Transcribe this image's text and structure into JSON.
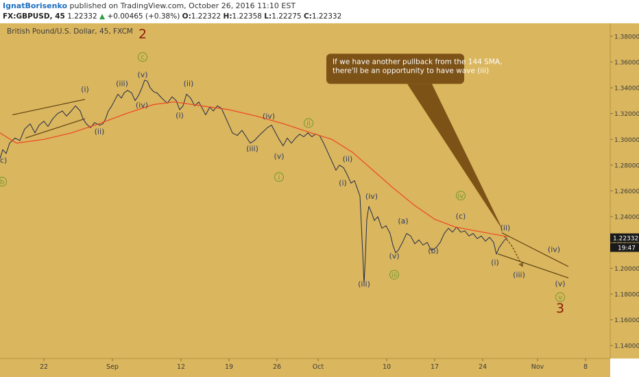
{
  "header": {
    "author": "IgnatBorisenko",
    "published_text": "published on TradingView.com, October 26, 2016 11:10 EST",
    "symbol": "FX:GBPUSD, 45",
    "last_price": "1.22332",
    "change_arrow": "▲",
    "change": "+0.00465 (+0.38%)",
    "open_label": "O:",
    "open": "1.22322",
    "high_label": "H:",
    "high": "1.22358",
    "low_label": "L:",
    "low": "1.22275",
    "close_label": "C:",
    "close": "1.22332"
  },
  "colors": {
    "background": "#dab65e",
    "price_line": "#1f2a4a",
    "sma": "#ee4422",
    "wave_dark": "#2b3a67",
    "wave_green": "#6f9a2c",
    "wave_red": "#8b1a0a",
    "callout": "#7d5216",
    "trend": "#5a3f12",
    "price_tag": "#1a1a1a"
  },
  "chart_data": {
    "type": "line",
    "title": "British Pound/U.S. Dollar, 45, FXCM",
    "xlabel": "",
    "ylabel": "",
    "ylim": [
      1.13,
      1.39
    ],
    "y_ticks": [
      "1.38000",
      "1.36000",
      "1.34000",
      "1.32000",
      "1.30000",
      "1.28000",
      "1.26000",
      "1.24000",
      "1.22000",
      "1.20000",
      "1.18000",
      "1.16000",
      "1.14000"
    ],
    "x_ticks": [
      {
        "label": "22",
        "x": 22
      },
      {
        "label": "Sep",
        "x": 32
      },
      {
        "label": "12",
        "x": 42
      },
      {
        "label": "19",
        "x": 49
      },
      {
        "label": "26",
        "x": 56
      },
      {
        "label": "Oct",
        "x": 62
      },
      {
        "label": "10",
        "x": 72
      },
      {
        "label": "17",
        "x": 79
      },
      {
        "label": "24",
        "x": 86
      },
      {
        "label": "Nov",
        "x": 94
      },
      {
        "label": "8",
        "x": 101
      }
    ],
    "xlim": [
      15.6,
      104.6
    ],
    "series": [
      {
        "kind": "price",
        "points": [
          [
            15.6,
            1.285
          ],
          [
            16.0,
            1.292
          ],
          [
            16.5,
            1.289
          ],
          [
            17.0,
            1.297
          ],
          [
            17.8,
            1.301
          ],
          [
            18.5,
            1.299
          ],
          [
            19.2,
            1.308
          ],
          [
            20.0,
            1.312
          ],
          [
            20.7,
            1.305
          ],
          [
            21.3,
            1.311
          ],
          [
            22.0,
            1.314
          ],
          [
            22.6,
            1.31
          ],
          [
            23.3,
            1.316
          ],
          [
            24.0,
            1.32
          ],
          [
            24.7,
            1.322
          ],
          [
            25.3,
            1.318
          ],
          [
            26.0,
            1.322
          ],
          [
            26.6,
            1.326
          ],
          [
            27.3,
            1.322
          ],
          [
            27.7,
            1.316
          ],
          [
            28.2,
            1.312
          ],
          [
            28.8,
            1.309
          ],
          [
            29.4,
            1.313
          ],
          [
            30.1,
            1.311
          ],
          [
            30.6,
            1.312
          ],
          [
            31.0,
            1.316
          ],
          [
            31.4,
            1.322
          ],
          [
            31.8,
            1.325
          ],
          [
            32.3,
            1.33
          ],
          [
            32.8,
            1.335
          ],
          [
            33.3,
            1.332
          ],
          [
            33.7,
            1.336
          ],
          [
            34.2,
            1.338
          ],
          [
            34.8,
            1.336
          ],
          [
            35.3,
            1.33
          ],
          [
            35.8,
            1.334
          ],
          [
            36.3,
            1.34
          ],
          [
            36.7,
            1.346
          ],
          [
            37.1,
            1.345
          ],
          [
            37.5,
            1.34
          ],
          [
            38.0,
            1.337
          ],
          [
            38.5,
            1.336
          ],
          [
            39.2,
            1.332
          ],
          [
            40.0,
            1.328
          ],
          [
            40.7,
            1.333
          ],
          [
            41.3,
            1.33
          ],
          [
            41.8,
            1.323
          ],
          [
            42.3,
            1.326
          ],
          [
            42.8,
            1.335
          ],
          [
            43.4,
            1.332
          ],
          [
            44.0,
            1.326
          ],
          [
            44.6,
            1.329
          ],
          [
            45.1,
            1.324
          ],
          [
            45.6,
            1.319
          ],
          [
            46.2,
            1.325
          ],
          [
            46.7,
            1.322
          ],
          [
            47.3,
            1.326
          ],
          [
            47.9,
            1.324
          ],
          [
            48.5,
            1.317
          ],
          [
            49.0,
            1.311
          ],
          [
            49.5,
            1.305
          ],
          [
            50.2,
            1.303
          ],
          [
            50.9,
            1.307
          ],
          [
            51.5,
            1.302
          ],
          [
            52.1,
            1.297
          ],
          [
            52.7,
            1.299
          ],
          [
            53.4,
            1.303
          ],
          [
            54.0,
            1.306
          ],
          [
            54.6,
            1.309
          ],
          [
            55.2,
            1.311
          ],
          [
            55.8,
            1.305
          ],
          [
            56.3,
            1.3
          ],
          [
            56.9,
            1.295
          ],
          [
            57.5,
            1.301
          ],
          [
            58.1,
            1.297
          ],
          [
            58.7,
            1.301
          ],
          [
            59.3,
            1.304
          ],
          [
            59.9,
            1.302
          ],
          [
            60.5,
            1.305
          ],
          [
            61.1,
            1.302
          ],
          [
            61.6,
            1.304
          ],
          [
            62.2,
            1.303
          ],
          [
            62.8,
            1.297
          ],
          [
            63.4,
            1.29
          ],
          [
            64.0,
            1.283
          ],
          [
            64.6,
            1.276
          ],
          [
            65.1,
            1.28
          ],
          [
            65.7,
            1.278
          ],
          [
            66.2,
            1.273
          ],
          [
            66.8,
            1.266
          ],
          [
            67.3,
            1.268
          ],
          [
            67.7,
            1.262
          ],
          [
            68.1,
            1.256
          ],
          [
            68.5,
            1.212
          ],
          [
            68.7,
            1.188
          ],
          [
            68.9,
            1.21
          ],
          [
            69.1,
            1.238
          ],
          [
            69.4,
            1.248
          ],
          [
            69.8,
            1.243
          ],
          [
            70.2,
            1.237
          ],
          [
            70.7,
            1.24
          ],
          [
            71.3,
            1.231
          ],
          [
            71.9,
            1.233
          ],
          [
            72.5,
            1.227
          ],
          [
            72.9,
            1.218
          ],
          [
            73.3,
            1.212
          ],
          [
            73.7,
            1.214
          ],
          [
            74.3,
            1.22
          ],
          [
            74.9,
            1.227
          ],
          [
            75.5,
            1.225
          ],
          [
            76.1,
            1.219
          ],
          [
            76.7,
            1.222
          ],
          [
            77.3,
            1.218
          ],
          [
            77.9,
            1.22
          ],
          [
            78.5,
            1.214
          ],
          [
            79.2,
            1.216
          ],
          [
            79.8,
            1.22
          ],
          [
            80.4,
            1.227
          ],
          [
            81.0,
            1.231
          ],
          [
            81.6,
            1.228
          ],
          [
            82.2,
            1.232
          ],
          [
            82.8,
            1.228
          ],
          [
            83.4,
            1.229
          ],
          [
            84.0,
            1.225
          ],
          [
            84.6,
            1.227
          ],
          [
            85.2,
            1.223
          ],
          [
            85.8,
            1.225
          ],
          [
            86.4,
            1.221
          ],
          [
            87.0,
            1.224
          ],
          [
            87.6,
            1.22
          ],
          [
            88.0,
            1.211
          ],
          [
            88.4,
            1.216
          ],
          [
            88.8,
            1.219
          ],
          [
            89.2,
            1.222
          ],
          [
            89.6,
            1.2233
          ]
        ]
      },
      {
        "kind": "sma",
        "name": "144 SMA",
        "points": [
          [
            15.6,
            1.305
          ],
          [
            18.0,
            1.297
          ],
          [
            22.0,
            1.3
          ],
          [
            26.0,
            1.305
          ],
          [
            30.0,
            1.312
          ],
          [
            34.0,
            1.32
          ],
          [
            38.0,
            1.327
          ],
          [
            41.0,
            1.329
          ],
          [
            45.0,
            1.326
          ],
          [
            49.0,
            1.323
          ],
          [
            53.0,
            1.318
          ],
          [
            57.0,
            1.312
          ],
          [
            61.0,
            1.305
          ],
          [
            64.0,
            1.3
          ],
          [
            67.0,
            1.29
          ],
          [
            70.0,
            1.276
          ],
          [
            73.0,
            1.262
          ],
          [
            76.0,
            1.249
          ],
          [
            79.0,
            1.238
          ],
          [
            82.0,
            1.232
          ],
          [
            85.0,
            1.229
          ],
          [
            89.6,
            1.2245
          ]
        ]
      }
    ],
    "last_price_tag": {
      "value": "1.22332",
      "countdown": "19:47"
    },
    "trendlines": [
      {
        "points": [
          [
            17.4,
            1.319
          ],
          [
            28.0,
            1.331
          ]
        ]
      },
      {
        "points": [
          [
            19.3,
            1.301
          ],
          [
            28.0,
            1.316
          ]
        ]
      },
      {
        "points": [
          [
            88.8,
            1.2275
          ],
          [
            98.5,
            1.2013
          ]
        ]
      },
      {
        "points": [
          [
            88.2,
            1.2112
          ],
          [
            98.5,
            1.1925
          ]
        ]
      }
    ],
    "projection": {
      "points": [
        [
          89.2,
          1.2245
        ],
        [
          90.3,
          1.217
        ],
        [
          91.8,
          1.2016
        ]
      ]
    },
    "callout": {
      "lines": [
        "If we have another pullback from the 144 SMA,",
        "there'll be an opportunity to have wave (iii)"
      ],
      "box": [
        [
          63.2,
          1.3664
        ],
        [
          83.3,
          1.343
        ]
      ],
      "pointer": [
        [
          75.0,
          1.343
        ],
        [
          78.6,
          1.343
        ],
        [
          89.0,
          1.229
        ]
      ]
    },
    "annotations": [
      {
        "text": "(c)",
        "x": 15.9,
        "y": 1.2817,
        "color": "dark"
      },
      {
        "text": "b",
        "x": 15.9,
        "y": 1.2653,
        "color": "green",
        "circle": true
      },
      {
        "text": "(i)",
        "x": 28.0,
        "y": 1.3367,
        "color": "dark"
      },
      {
        "text": "(ii)",
        "x": 30.1,
        "y": 1.304,
        "color": "dark"
      },
      {
        "text": "2",
        "x": 36.4,
        "y": 1.3783,
        "color": "red",
        "big": true
      },
      {
        "text": "c",
        "x": 36.4,
        "y": 1.362,
        "color": "green",
        "circle": true
      },
      {
        "text": "(v)",
        "x": 36.4,
        "y": 1.3482,
        "color": "dark"
      },
      {
        "text": "(iii)",
        "x": 33.4,
        "y": 1.3414,
        "color": "dark"
      },
      {
        "text": "(iv)",
        "x": 36.3,
        "y": 1.3246,
        "color": "dark"
      },
      {
        "text": "(ii)",
        "x": 43.1,
        "y": 1.3414,
        "color": "dark"
      },
      {
        "text": "(i)",
        "x": 41.8,
        "y": 1.3165,
        "color": "dark"
      },
      {
        "text": "(iv)",
        "x": 54.8,
        "y": 1.3161,
        "color": "dark"
      },
      {
        "text": "ii",
        "x": 60.6,
        "y": 1.3108,
        "color": "green",
        "circle": true
      },
      {
        "text": "(iii)",
        "x": 52.4,
        "y": 1.2908,
        "color": "dark"
      },
      {
        "text": "(v)",
        "x": 56.3,
        "y": 1.2851,
        "color": "dark"
      },
      {
        "text": "i",
        "x": 56.3,
        "y": 1.2689,
        "color": "green",
        "circle": true
      },
      {
        "text": "(ii)",
        "x": 66.3,
        "y": 1.2829,
        "color": "dark"
      },
      {
        "text": "(i)",
        "x": 65.6,
        "y": 1.2642,
        "color": "dark"
      },
      {
        "text": "(iv)",
        "x": 69.8,
        "y": 1.2538,
        "color": "dark"
      },
      {
        "text": "(iii)",
        "x": 68.7,
        "y": 1.1858,
        "color": "dark"
      },
      {
        "text": "(a)",
        "x": 74.4,
        "y": 1.2348,
        "color": "dark"
      },
      {
        "text": "(v)",
        "x": 73.1,
        "y": 1.2076,
        "color": "dark"
      },
      {
        "text": "iii",
        "x": 73.1,
        "y": 1.1931,
        "color": "green",
        "circle": true
      },
      {
        "text": "(b)",
        "x": 78.8,
        "y": 1.2115,
        "color": "dark"
      },
      {
        "text": "iv",
        "x": 82.8,
        "y": 1.2545,
        "color": "green",
        "circle": true
      },
      {
        "text": "(c)",
        "x": 82.8,
        "y": 1.2385,
        "color": "dark"
      },
      {
        "text": "(ii)",
        "x": 89.3,
        "y": 1.2295,
        "color": "dark"
      },
      {
        "text": "(iv)",
        "x": 96.4,
        "y": 1.2126,
        "color": "dark"
      },
      {
        "text": "(i)",
        "x": 87.8,
        "y": 1.2025,
        "color": "dark"
      },
      {
        "text": "(iii)",
        "x": 91.3,
        "y": 1.1929,
        "color": "dark"
      },
      {
        "text": "(v)",
        "x": 97.3,
        "y": 1.1862,
        "color": "dark"
      },
      {
        "text": "v",
        "x": 97.3,
        "y": 1.1757,
        "color": "green",
        "circle": true
      },
      {
        "text": "3",
        "x": 97.3,
        "y": 1.1655,
        "color": "red",
        "big": true
      }
    ]
  }
}
